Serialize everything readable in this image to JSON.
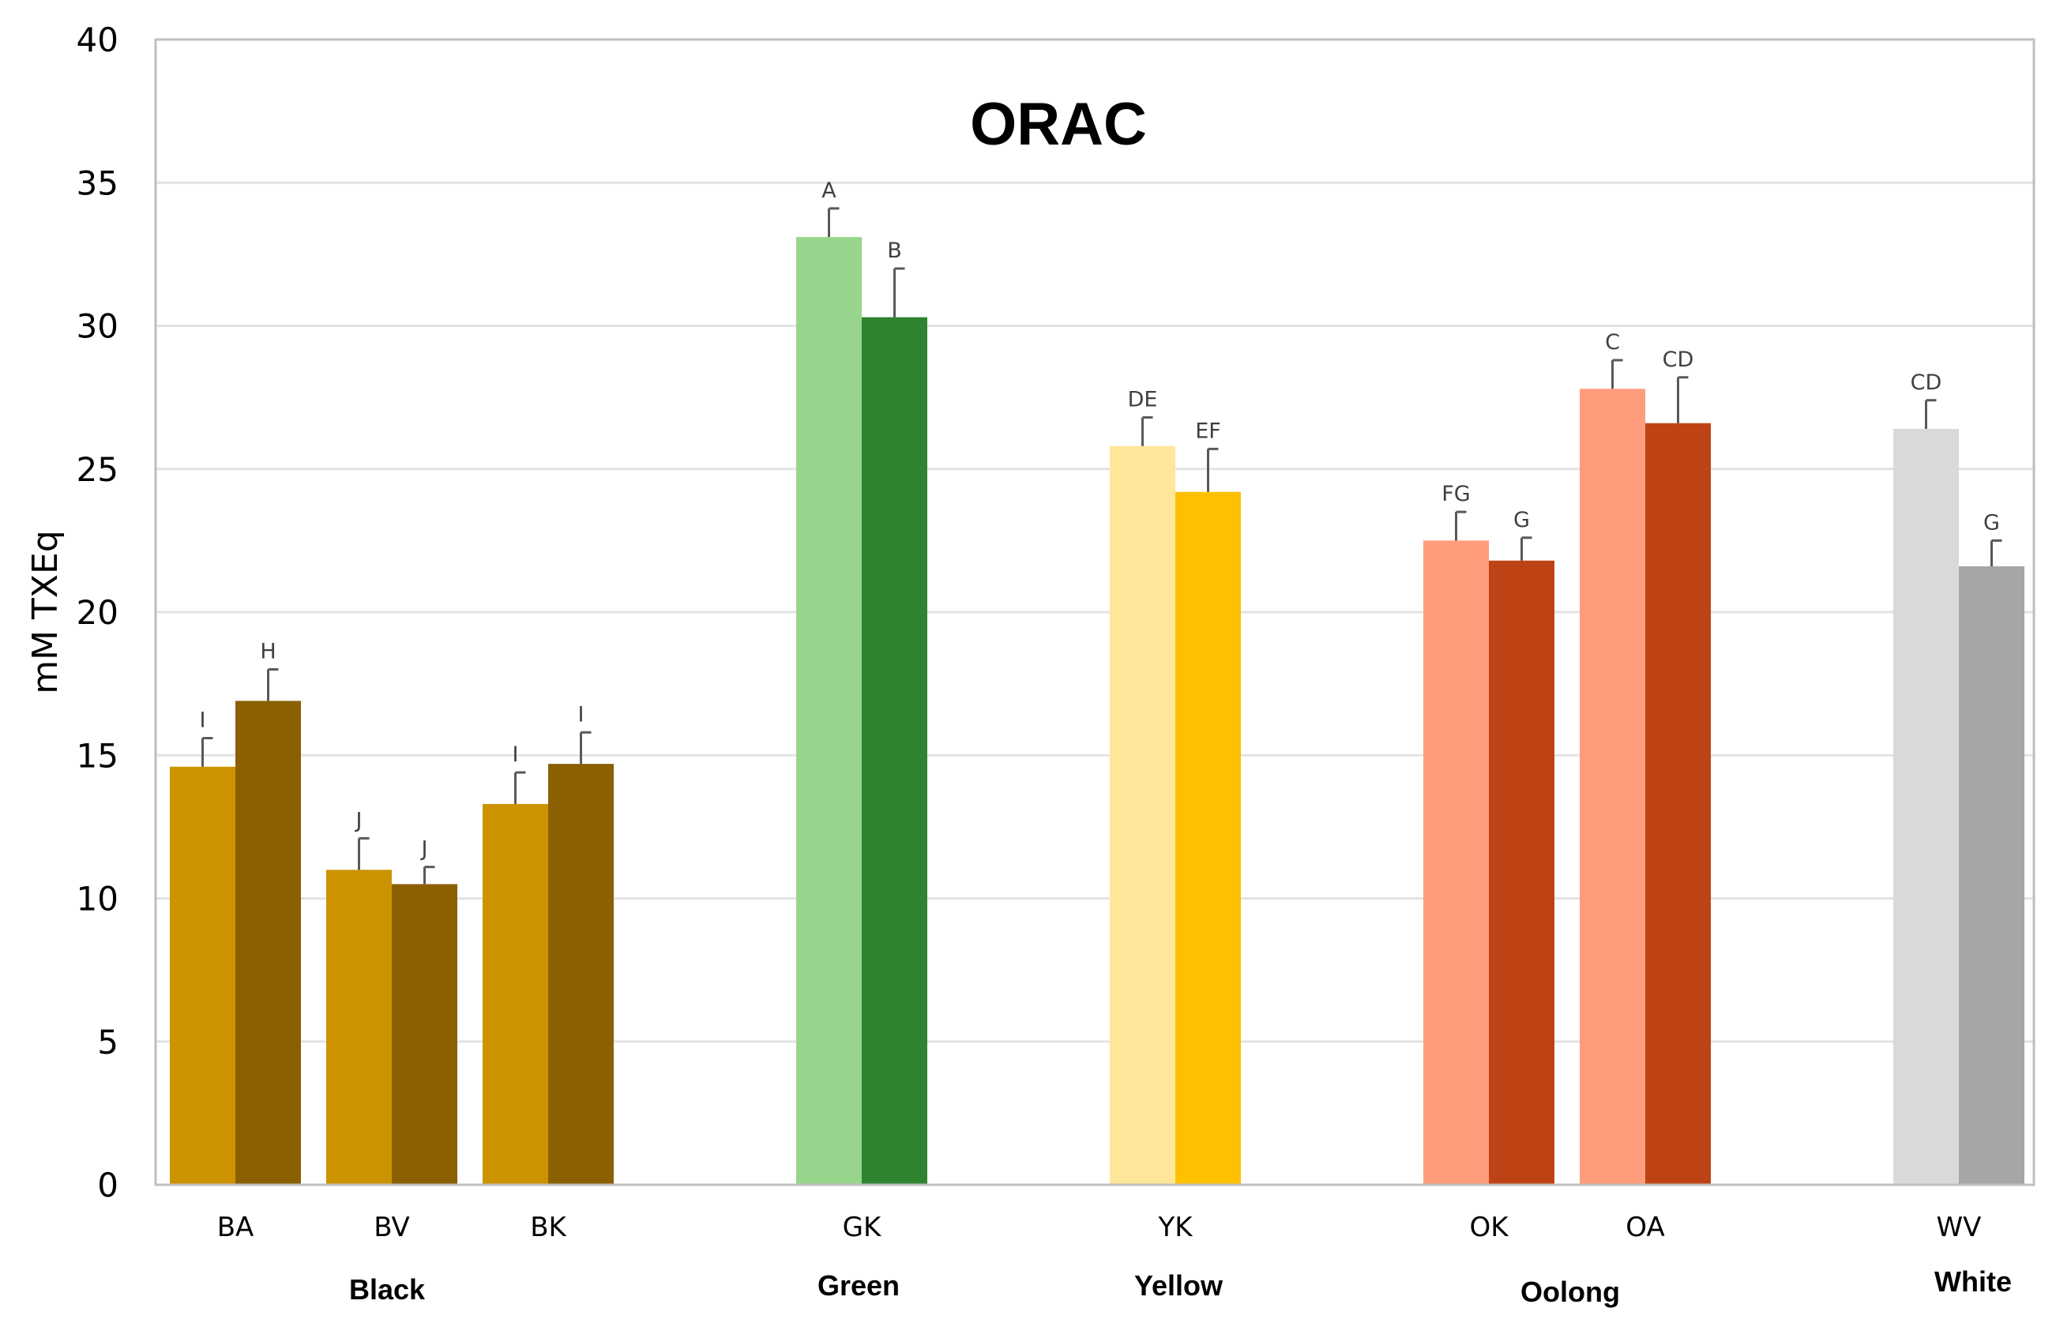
{
  "chart_data": {
    "type": "bar",
    "title": "ORAC",
    "ylabel": "mM TXEq",
    "xlabel": "",
    "ylim": [
      0,
      40
    ],
    "yticks": [
      0,
      5,
      10,
      15,
      20,
      25,
      30,
      35,
      40
    ],
    "grid": true,
    "legend": "none",
    "categories": [
      {
        "label": "BA",
        "group": "Black"
      },
      {
        "label": "BV",
        "group": "Black"
      },
      {
        "label": "BK",
        "group": "Black"
      },
      {
        "label": "GK",
        "group": "Green"
      },
      {
        "label": "YK",
        "group": "Yellow"
      },
      {
        "label": "OK",
        "group": "Oolong"
      },
      {
        "label": "OA",
        "group": "Oolong"
      },
      {
        "label": "WV",
        "group": "White"
      }
    ],
    "groups": [
      "Black",
      "Green",
      "Yellow",
      "Oolong",
      "White"
    ],
    "bars": [
      {
        "category": "BA",
        "value": 14.6,
        "error": 1.0,
        "letter": "I",
        "color": "#CC9200"
      },
      {
        "category": "BA",
        "value": 16.9,
        "error": 1.1,
        "letter": "H",
        "color": "#8A6000"
      },
      {
        "category": "BV",
        "value": 11.0,
        "error": 1.1,
        "letter": "J",
        "color": "#CC9200"
      },
      {
        "category": "BV",
        "value": 10.5,
        "error": 0.6,
        "letter": "J",
        "color": "#8A6000"
      },
      {
        "category": "BK",
        "value": 13.3,
        "error": 1.1,
        "letter": "I",
        "color": "#CC9200"
      },
      {
        "category": "BK",
        "value": 14.7,
        "error": 1.1,
        "letter": "I",
        "color": "#8A6000"
      },
      {
        "category": "GK",
        "value": 33.1,
        "error": 1.0,
        "letter": "A",
        "color": "#98D58C"
      },
      {
        "category": "GK",
        "value": 30.3,
        "error": 1.7,
        "letter": "B",
        "color": "#2E8430"
      },
      {
        "category": "YK",
        "value": 25.8,
        "error": 1.0,
        "letter": "DE",
        "color": "#FFE699"
      },
      {
        "category": "YK",
        "value": 24.2,
        "error": 1.5,
        "letter": "EF",
        "color": "#FFC000"
      },
      {
        "category": "OK",
        "value": 22.5,
        "error": 1.0,
        "letter": "FG",
        "color": "#FF9C7C"
      },
      {
        "category": "OK",
        "value": 21.8,
        "error": 0.8,
        "letter": "G",
        "color": "#BD4314"
      },
      {
        "category": "OA",
        "value": 27.8,
        "error": 1.0,
        "letter": "C",
        "color": "#FF9C7C"
      },
      {
        "category": "OA",
        "value": 26.6,
        "error": 1.6,
        "letter": "CD",
        "color": "#BD4314"
      },
      {
        "category": "WV",
        "value": 26.4,
        "error": 1.0,
        "letter": "CD",
        "color": "#D9D9D9"
      },
      {
        "category": "WV",
        "value": 21.6,
        "error": 0.9,
        "letter": "G",
        "color": "#A6A6A6"
      }
    ]
  }
}
